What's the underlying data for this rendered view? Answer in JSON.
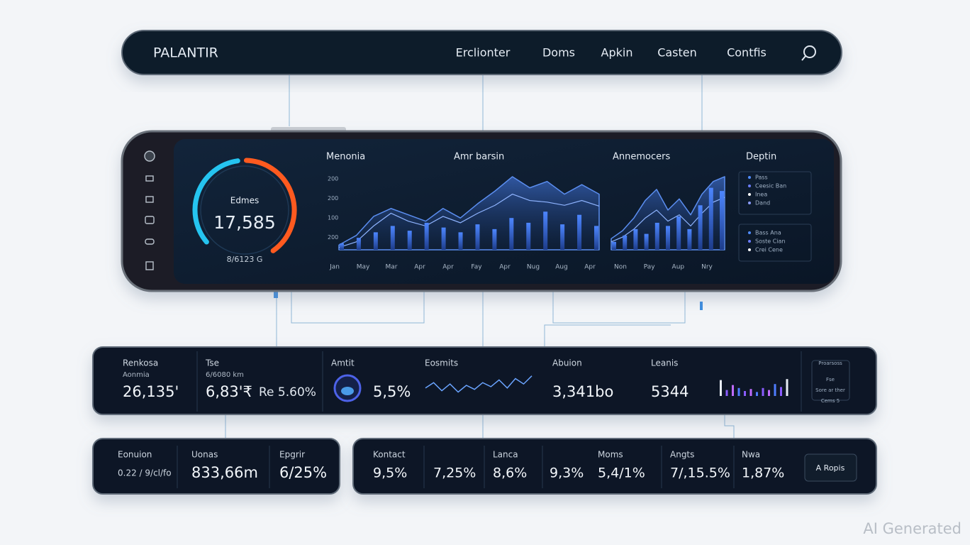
{
  "nav": {
    "brand": "PALANTIR",
    "items": [
      "Erclionter",
      "Doms",
      "Apkin",
      "Casten",
      "Contfis"
    ]
  },
  "hero": {
    "gauge": {
      "label": "Edmes",
      "value": "17,585",
      "sub": "8/6123 G"
    },
    "charts": [
      {
        "titles": [
          "Menonia",
          "Amr barsin"
        ],
        "y_labels": [
          "200",
          "200",
          "100",
          "200"
        ],
        "x_labels": [
          "Jan",
          "May",
          "Mar",
          "Apr",
          "Apr",
          "Fay",
          "Apr",
          "Nug",
          "Aug",
          "Apr"
        ],
        "bars": [
          8,
          15,
          22,
          30,
          24,
          34,
          28,
          22,
          32,
          26,
          40,
          34,
          48,
          32,
          44,
          30
        ],
        "area": [
          6,
          18,
          42,
          52,
          44,
          36,
          52,
          40,
          58,
          74,
          92,
          78,
          86,
          70,
          82,
          70
        ],
        "line": [
          3,
          10,
          30,
          46,
          36,
          30,
          42,
          34,
          46,
          56,
          70,
          62,
          60,
          56,
          62,
          55
        ]
      },
      {
        "titles": [
          "Annemocers"
        ],
        "x_labels": [
          "Non",
          "Pay",
          "Aup",
          "Nry"
        ],
        "bars": [
          10,
          18,
          26,
          20,
          34,
          30,
          42,
          26,
          56,
          78,
          74
        ],
        "area": [
          14,
          24,
          40,
          62,
          76,
          50,
          64,
          44,
          70,
          86,
          92
        ],
        "line": [
          10,
          16,
          26,
          40,
          50,
          36,
          44,
          30,
          46,
          60,
          66
        ]
      }
    ],
    "legend": {
      "title": "Deptin",
      "groups": [
        [
          "Pass",
          "Ceesic Ban",
          "Inea",
          "Dand"
        ],
        [
          "Bass Ana",
          "Soste Cian",
          "Crei Cene"
        ]
      ]
    }
  },
  "stats_top": {
    "items": [
      {
        "label": "Renkosa",
        "sub": "Aonmia",
        "value": "26,135'"
      },
      {
        "label": "Tse",
        "sub": "6/6080 km",
        "value": "6,83'₹",
        "extra": "Re 5.60%"
      },
      {
        "label": "Amtit",
        "value": "5,5%"
      },
      {
        "label": "Eosmits",
        "spark": [
          40,
          60,
          30,
          55,
          25,
          50,
          35,
          60,
          45,
          70,
          40,
          75,
          55,
          85
        ]
      },
      {
        "label": "Abuion",
        "value": "3,341bo"
      },
      {
        "label": "Leanis",
        "value": "5344",
        "mini_bars": [
          80,
          30,
          55,
          40,
          25,
          35,
          20,
          40,
          30,
          60,
          45,
          85
        ]
      }
    ],
    "box": [
      "Proarsoss",
      "Fse",
      "Sore ar ther",
      "Cems 5"
    ]
  },
  "stats_left": [
    {
      "label": "Eonuion",
      "value": "0.22 / 9/cl/fo"
    },
    {
      "label": "Uonas",
      "value": "833,66m"
    },
    {
      "label": "Epgrir",
      "value": "6/25%"
    }
  ],
  "stats_right": {
    "items": [
      {
        "label": "Kontact",
        "value": "9,5%"
      },
      {
        "value": "7,25%"
      },
      {
        "label": "Lanca",
        "value": "8,6%"
      },
      {
        "value": "9,3%"
      },
      {
        "label": "Moms",
        "value": "5,4/1%"
      },
      {
        "label": "Angts",
        "value": "7/,15.5%"
      },
      {
        "label": "Nwa",
        "value": "1,87%"
      }
    ],
    "button": "A Ropis"
  },
  "watermark": "AI Generated"
}
